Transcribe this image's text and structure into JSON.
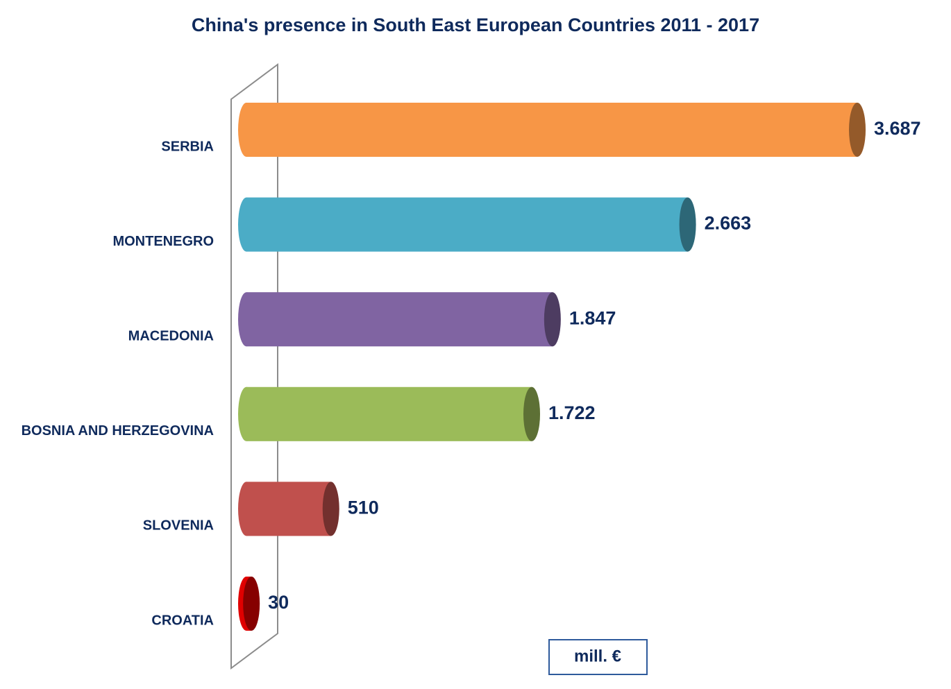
{
  "chart_data": {
    "type": "bar",
    "orientation": "horizontal",
    "title": "China's presence  in South East European Countries 2011 - 2017",
    "categories": [
      "SERBIA",
      "MONTENEGRO",
      "MACEDONIA",
      "BOSNIA AND HERZEGOVINA",
      "SLOVENIA",
      "CROATIA"
    ],
    "values": [
      3687,
      2663,
      1847,
      1722,
      510,
      30
    ],
    "value_labels": [
      "3.687",
      "2.663",
      "1.847",
      "1.722",
      "510",
      "30"
    ],
    "colors": [
      "#f79646",
      "#4bacc6",
      "#8064a2",
      "#9bbb59",
      "#c0504d",
      "#e00000"
    ],
    "unit_label": "mill. €"
  }
}
